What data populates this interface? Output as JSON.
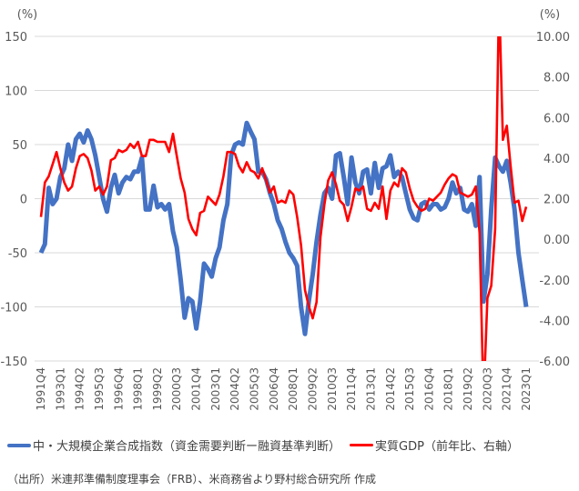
{
  "chart_data": {
    "type": "line",
    "left_axis": {
      "unit_label": "(%)",
      "ylim": [
        -150,
        150
      ],
      "ticks": [
        "150",
        "100",
        "50",
        "0",
        "-50",
        "-100",
        "-150"
      ]
    },
    "right_axis": {
      "unit_label": "(%)",
      "ylim": [
        -6,
        10
      ],
      "ticks": [
        "10.00",
        "8.00",
        "6.00",
        "4.00",
        "2.00",
        "0.00",
        "-2.00",
        "-4.00",
        "-6.00"
      ]
    },
    "x_start": "1991Q4",
    "x_tick_labels": [
      "1991Q4",
      "1993Q1",
      "1994Q2",
      "1995Q3",
      "1996Q4",
      "1998Q1",
      "1999Q2",
      "2000Q3",
      "2001Q4",
      "2003Q1",
      "2004Q2",
      "2005Q3",
      "2006Q4",
      "2008Q1",
      "2009Q2",
      "2010Q3",
      "2011Q4",
      "2013Q1",
      "2014Q2",
      "2015Q3",
      "2016Q4",
      "2018Q1",
      "2019Q2",
      "2020Q3",
      "2021Q4",
      "2023Q1"
    ],
    "grid": true,
    "legend_position": "bottom",
    "series": [
      {
        "name": "中・大規模企業合成指数（資金需要判断ー融資基準判断）",
        "axis": "left",
        "color": "#4472C4",
        "values": [
          -50,
          -42,
          10,
          -5,
          0,
          20,
          28,
          50,
          35,
          55,
          60,
          52,
          63,
          55,
          40,
          20,
          0,
          -12,
          10,
          22,
          5,
          15,
          20,
          18,
          25,
          25,
          38,
          -10,
          -10,
          12,
          -8,
          -5,
          -10,
          -5,
          -30,
          -45,
          -75,
          -110,
          -92,
          -95,
          -120,
          -95,
          -60,
          -65,
          -72,
          -55,
          -45,
          -20,
          -5,
          40,
          50,
          52,
          50,
          70,
          62,
          55,
          25,
          25,
          18,
          5,
          -5,
          -20,
          -28,
          -40,
          -50,
          -55,
          -62,
          -100,
          -125,
          -95,
          -70,
          -40,
          -15,
          5,
          10,
          0,
          40,
          42,
          20,
          -5,
          38,
          15,
          5,
          25,
          27,
          5,
          33,
          10,
          28,
          30,
          40,
          20,
          25,
          20,
          5,
          -10,
          -18,
          -20,
          -5,
          -3,
          -10,
          -5,
          -5,
          -10,
          -8,
          0,
          15,
          5,
          10,
          -10,
          -12,
          -5,
          -25,
          20,
          -95,
          -70,
          -10,
          38,
          30,
          25,
          35,
          15,
          -10,
          -50,
          -75,
          -100
        ]
      },
      {
        "name": "実質GDP（前年比、右軸）",
        "axis": "right",
        "color": "#FF0000",
        "values": [
          1.1,
          2.8,
          3.1,
          3.7,
          4.3,
          3.5,
          2.8,
          2.4,
          2.6,
          3.5,
          4.1,
          4.2,
          4.0,
          3.4,
          2.4,
          2.6,
          2.2,
          2.6,
          3.9,
          4.0,
          4.4,
          4.3,
          4.4,
          4.7,
          4.5,
          4.8,
          4.1,
          4.1,
          4.9,
          4.9,
          4.8,
          4.8,
          4.8,
          4.3,
          5.2,
          4.1,
          3.0,
          2.3,
          1.0,
          0.5,
          0.2,
          1.3,
          1.4,
          2.1,
          1.9,
          1.7,
          2.2,
          3.1,
          4.3,
          4.3,
          4.2,
          3.6,
          3.3,
          3.8,
          3.4,
          3.3,
          3.0,
          3.5,
          2.9,
          2.3,
          2.6,
          1.8,
          1.9,
          1.8,
          2.4,
          2.2,
          1.1,
          -0.3,
          -2.5,
          -3.3,
          -3.9,
          -3.1,
          0.1,
          1.7,
          2.9,
          3.3,
          2.7,
          1.9,
          1.7,
          0.9,
          1.6,
          2.5,
          2.4,
          2.6,
          1.5,
          1.4,
          1.8,
          1.5,
          2.6,
          1.0,
          2.4,
          2.8,
          2.6,
          3.5,
          3.3,
          2.5,
          1.9,
          1.6,
          1.4,
          1.5,
          2.0,
          1.9,
          2.1,
          2.3,
          2.7,
          3.0,
          3.2,
          3.1,
          2.3,
          2.2,
          2.1,
          2.2,
          2.6,
          0.3,
          -8.0,
          -2.9,
          -2.3,
          0.5,
          12.0,
          4.9,
          5.6,
          3.6,
          1.8,
          1.9,
          0.9,
          1.6
        ]
      }
    ]
  },
  "legend": {
    "blue_label": "中・大規模企業合成指数（資金需要判断ー融資基準判断）",
    "red_label": "実質GDP（前年比、右軸）"
  },
  "source": "（出所）米連邦準備制度理事会（FRB）、米商務省より野村総合研究所 作成"
}
